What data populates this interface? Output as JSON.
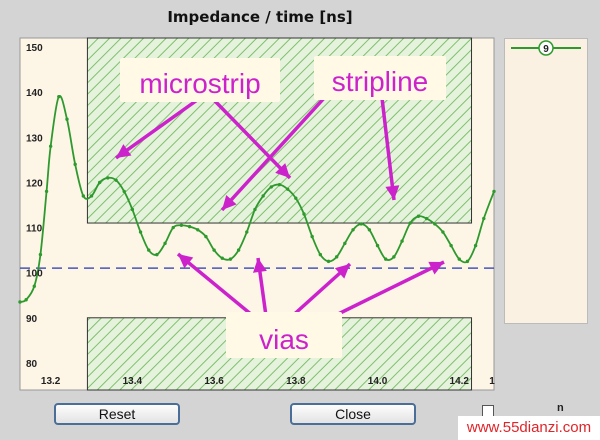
{
  "window": {
    "chart_title": "Impedance  / time [ns]"
  },
  "legend": {
    "entries": [
      {
        "label": "9",
        "color": "#2e9a2e"
      }
    ]
  },
  "annotations": {
    "microstrip_label": "microstrip",
    "stripline_label": "stripline",
    "vias_label": "vias",
    "label_color": "#cc22cc"
  },
  "buttons": {
    "reset_label": "Reset",
    "close_label": "Close"
  },
  "watermark": "www.55dianzi.com",
  "checkbox_label": "n",
  "colors": {
    "trace": "#2e9a2e",
    "reference_line": "#4455bb",
    "plot_bg": "#fdf5e6",
    "hatch": "#7fbf6f"
  },
  "chart_data": {
    "type": "line",
    "title": "Impedance  / time [ns]",
    "xlabel": "",
    "ylabel": "",
    "xlim": [
      13.125,
      14.285
    ],
    "ylim": [
      74,
      152
    ],
    "x_ticks": [
      "13.2",
      "13.4",
      "13.6",
      "13.8",
      "14.0",
      "14.2",
      "1"
    ],
    "y_ticks": [
      "150",
      "140",
      "130",
      "120",
      "110",
      "100",
      "90",
      "80"
    ],
    "reference_line": 101,
    "shaded_regions": [
      {
        "x": [
          13.29,
          14.23
        ],
        "y": [
          111,
          152
        ]
      },
      {
        "x": [
          13.29,
          14.23
        ],
        "y": [
          74,
          90
        ]
      }
    ],
    "series": [
      {
        "name": "9",
        "x": [
          13.125,
          13.14,
          13.16,
          13.175,
          13.19,
          13.2,
          13.22,
          13.24,
          13.26,
          13.28,
          13.3,
          13.32,
          13.34,
          13.36,
          13.38,
          13.4,
          13.42,
          13.44,
          13.46,
          13.48,
          13.5,
          13.52,
          13.54,
          13.56,
          13.58,
          13.6,
          13.62,
          13.64,
          13.66,
          13.68,
          13.7,
          13.72,
          13.74,
          13.76,
          13.78,
          13.8,
          13.82,
          13.84,
          13.86,
          13.88,
          13.9,
          13.92,
          13.94,
          13.96,
          13.98,
          14.0,
          14.02,
          14.04,
          14.06,
          14.08,
          14.1,
          14.12,
          14.14,
          14.16,
          14.18,
          14.2,
          14.22,
          14.24,
          14.26,
          14.285
        ],
        "values": [
          93.5,
          94,
          97,
          104,
          118,
          128,
          139,
          134,
          124,
          117,
          117,
          120,
          121,
          120.5,
          118,
          114,
          109,
          105,
          104,
          106.5,
          110,
          110.5,
          110.2,
          109.5,
          108,
          105,
          103.2,
          103,
          105,
          109,
          114,
          117,
          119,
          119.5,
          118.5,
          116.5,
          113,
          108,
          104,
          102.5,
          103.5,
          106.5,
          109.5,
          110.8,
          109.5,
          106,
          103,
          103.5,
          107,
          111,
          112.5,
          112,
          110.8,
          109,
          106,
          103,
          102.5,
          106,
          112,
          118
        ]
      }
    ],
    "grid": false,
    "legend_position": "right"
  }
}
